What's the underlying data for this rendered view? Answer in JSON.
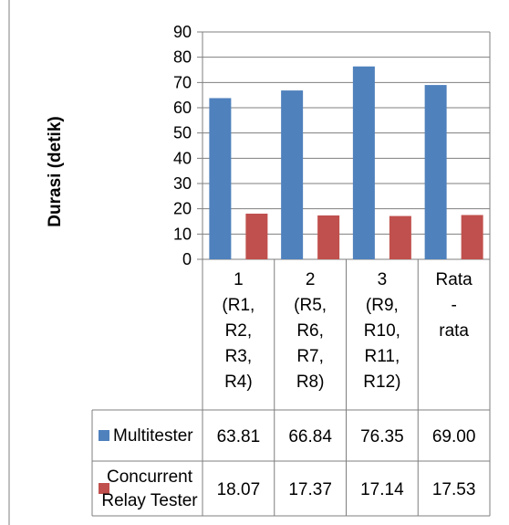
{
  "chart_data": {
    "type": "bar",
    "title": "",
    "xlabel": "",
    "ylabel": "Durasi (detik)",
    "ylim": [
      0,
      90
    ],
    "yticks": [
      0,
      10,
      20,
      30,
      40,
      50,
      60,
      70,
      80,
      90
    ],
    "grid": true,
    "legend": "data-table",
    "categories": [
      [
        "1",
        "(R1,",
        "R2,",
        "R3,",
        "R4)"
      ],
      [
        "2",
        "(R5,",
        "R6,",
        "R7,",
        "R8)"
      ],
      [
        "3",
        "(R9,",
        "R10,",
        "R11,",
        "R12)"
      ],
      [
        "Rata",
        "-",
        "rata"
      ]
    ],
    "series": [
      {
        "name": "Multitester",
        "name_lines": [
          "Multitester"
        ],
        "color": "#4f81bd",
        "values": [
          63.81,
          66.84,
          76.35,
          69.0
        ],
        "labels": [
          "63.81",
          "66.84",
          "76.35",
          "69.00"
        ]
      },
      {
        "name": "Concurrent Relay Tester",
        "name_lines": [
          "Concurrent",
          "Relay Tester"
        ],
        "color": "#c0504d",
        "values": [
          18.07,
          17.37,
          17.14,
          17.53
        ],
        "labels": [
          "18.07",
          "17.37",
          "17.14",
          "17.53"
        ]
      }
    ]
  }
}
